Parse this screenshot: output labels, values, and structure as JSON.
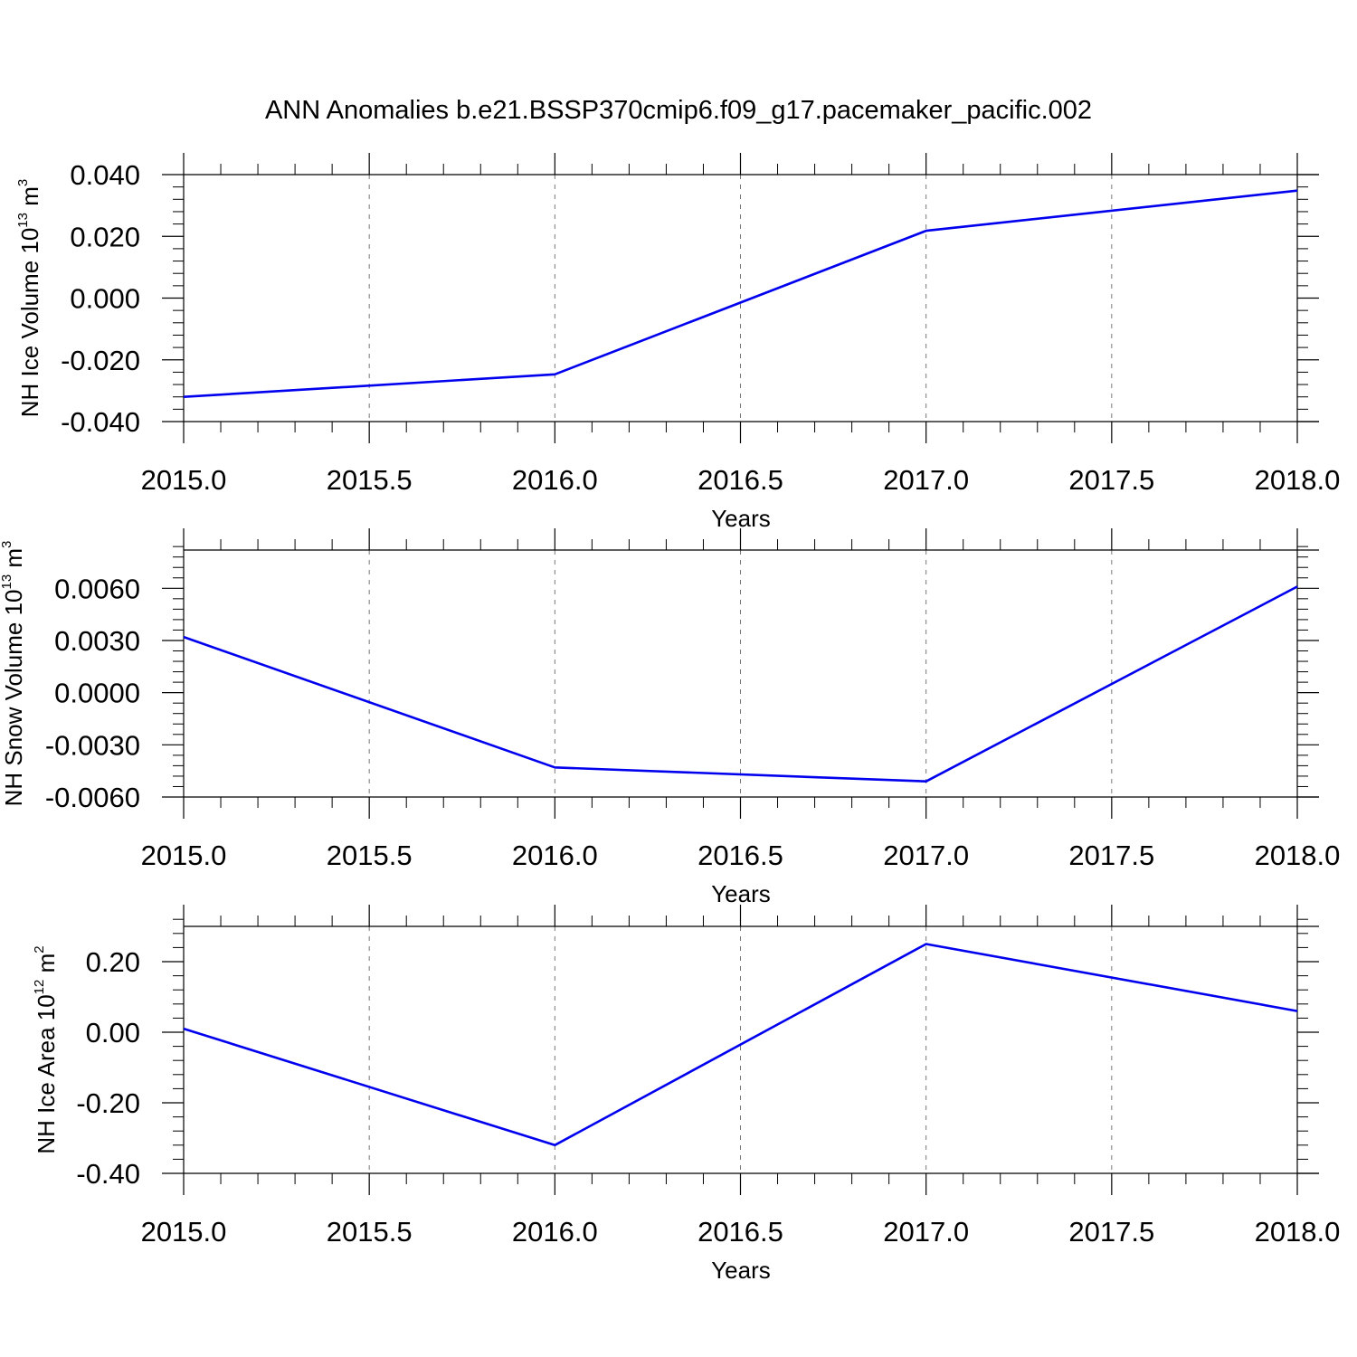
{
  "title": "ANN Anomalies b.e21.BSSP370cmip6.f09_g17.pacemaker_pacific.002",
  "chart_data": [
    {
      "type": "line",
      "ylabel": "NH Ice Volume 10",
      "ylabel_exp": "13",
      "ylabel_unit": "m",
      "ylabel_unit_exp": "3",
      "xlabel": "Years",
      "xlim": [
        2015.0,
        2018.0
      ],
      "ylim": [
        -0.04,
        0.04
      ],
      "x_ticks": [
        2015.0,
        2015.5,
        2016.0,
        2016.5,
        2017.0,
        2017.5,
        2018.0
      ],
      "x_tick_labels": [
        "2015.0",
        "2015.5",
        "2016.0",
        "2016.5",
        "2017.0",
        "2017.5",
        "2018.0"
      ],
      "y_ticks": [
        -0.04,
        -0.02,
        0.0,
        0.02,
        0.04
      ],
      "y_tick_labels": [
        "-0.040",
        "-0.020",
        "0.000",
        "0.020",
        "0.040"
      ],
      "y_minor_step": 0.004,
      "grid": "vertical dashed at major x ticks",
      "color": "#0000ee",
      "series": [
        {
          "x": [
            2015,
            2016,
            2017,
            2018
          ],
          "y": [
            -0.032,
            -0.0247,
            0.0218,
            0.0348
          ]
        }
      ]
    },
    {
      "type": "line",
      "ylabel": "NH Snow Volume 10",
      "ylabel_exp": "13",
      "ylabel_unit": "m",
      "ylabel_unit_exp": "3",
      "xlabel": "Years",
      "xlim": [
        2015.0,
        2018.0
      ],
      "ylim": [
        -0.006,
        0.0082
      ],
      "x_ticks": [
        2015.0,
        2015.5,
        2016.0,
        2016.5,
        2017.0,
        2017.5,
        2018.0
      ],
      "x_tick_labels": [
        "2015.0",
        "2015.5",
        "2016.0",
        "2016.5",
        "2017.0",
        "2017.5",
        "2018.0"
      ],
      "y_ticks": [
        -0.006,
        -0.003,
        0.0,
        0.003,
        0.006
      ],
      "y_tick_labels": [
        "-0.0060",
        "-0.0030",
        "0.0000",
        "0.0030",
        "0.0060"
      ],
      "y_minor_step": 0.0006,
      "grid": "vertical dashed at major x ticks",
      "color": "#0000ee",
      "series": [
        {
          "x": [
            2015,
            2016,
            2017,
            2018
          ],
          "y": [
            0.0032,
            -0.0043,
            -0.0051,
            0.0061
          ]
        }
      ]
    },
    {
      "type": "line",
      "ylabel": "NH Ice Area 10",
      "ylabel_exp": "12",
      "ylabel_unit": "m",
      "ylabel_unit_exp": "2",
      "xlabel": "Years",
      "xlim": [
        2015.0,
        2018.0
      ],
      "ylim": [
        -0.4,
        0.3
      ],
      "x_ticks": [
        2015.0,
        2015.5,
        2016.0,
        2016.5,
        2017.0,
        2017.5,
        2018.0
      ],
      "x_tick_labels": [
        "2015.0",
        "2015.5",
        "2016.0",
        "2016.5",
        "2017.0",
        "2017.5",
        "2018.0"
      ],
      "y_ticks": [
        -0.4,
        -0.2,
        0.0,
        0.2
      ],
      "y_tick_labels": [
        "-0.40",
        "-0.20",
        "0.00",
        "0.20"
      ],
      "y_minor_step": 0.04,
      "grid": "vertical dashed at major x ticks",
      "color": "#0000ee",
      "series": [
        {
          "x": [
            2015,
            2016,
            2017,
            2018
          ],
          "y": [
            0.01,
            -0.32,
            0.25,
            0.06
          ]
        }
      ]
    }
  ]
}
